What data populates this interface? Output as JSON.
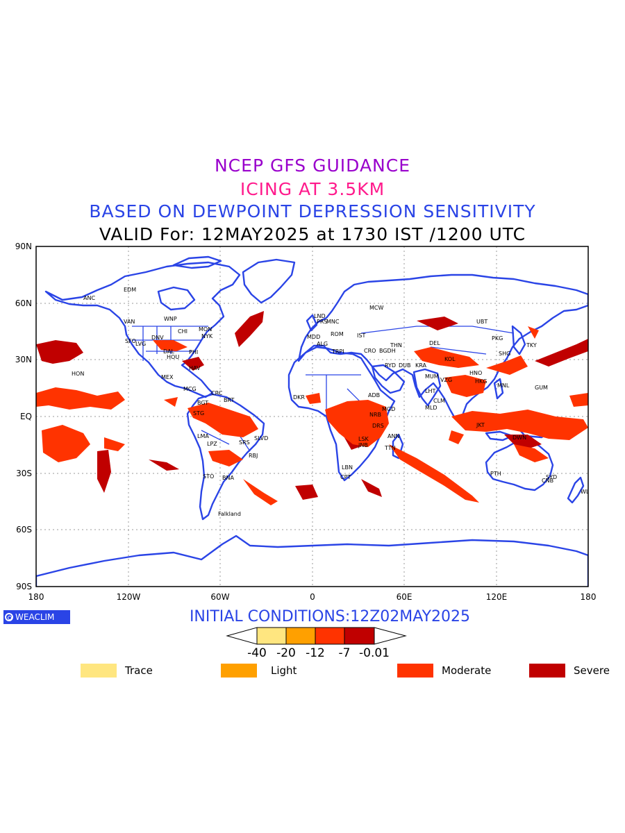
{
  "titles": {
    "line1": "NCEP GFS GUIDANCE",
    "line2": "ICING AT 3.5KM",
    "line3": "BASED ON DEWPOINT DEPRESSION SENSITIVITY",
    "line4": "VALID For: 12MAY2025 at 1730 IST /1200 UTC"
  },
  "map": {
    "lat_labels": [
      "90N",
      "60N",
      "30N",
      "EQ",
      "30S",
      "60S",
      "90S"
    ],
    "lon_labels": [
      "180",
      "120W",
      "60W",
      "0",
      "60E",
      "120E",
      "180"
    ],
    "colors": {
      "coast": "#2a44e6",
      "trace": "#ffe680",
      "light": "#ffa000",
      "moderate": "#ff3300",
      "severe": "#c00000"
    },
    "cities": [
      [
        "ANC",
        120,
        432
      ],
      [
        "HON",
        103,
        541
      ],
      [
        "VAN",
        178,
        466
      ],
      [
        "EDM",
        178,
        420
      ],
      [
        "WNP",
        236,
        462
      ],
      [
        "MON",
        286,
        477
      ],
      [
        "SFO",
        180,
        494
      ],
      [
        "LVG",
        195,
        498
      ],
      [
        "DNV",
        218,
        489
      ],
      [
        "NYK",
        290,
        487
      ],
      [
        "CHI",
        256,
        480
      ],
      [
        "DAL",
        235,
        509
      ],
      [
        "HOU",
        240,
        517
      ],
      [
        "PHI",
        272,
        510
      ],
      [
        "MEX",
        232,
        546
      ],
      [
        "HAV",
        272,
        533
      ],
      [
        "MCG",
        264,
        563
      ],
      [
        "CRC",
        304,
        569
      ],
      [
        "BRT",
        322,
        579
      ],
      [
        "BGT",
        284,
        583
      ],
      [
        "STG",
        278,
        598
      ],
      [
        "LMA",
        284,
        631
      ],
      [
        "LPZ",
        298,
        642
      ],
      [
        "SRS",
        344,
        640
      ],
      [
        "SLVD",
        366,
        634
      ],
      [
        "RBJ",
        358,
        659
      ],
      [
        "STO",
        292,
        689
      ],
      [
        "BNA",
        320,
        691
      ],
      [
        "Falkland",
        314,
        743
      ],
      [
        "LND",
        452,
        458
      ],
      [
        "PRS",
        456,
        466
      ],
      [
        "MNC",
        470,
        466
      ],
      [
        "MDD",
        442,
        488
      ],
      [
        "ALG",
        456,
        498
      ],
      [
        "TRPI",
        478,
        509
      ],
      [
        "ROM",
        476,
        484
      ],
      [
        "IST",
        514,
        486
      ],
      [
        "MCW",
        532,
        446
      ],
      [
        "CRO",
        524,
        508
      ],
      [
        "BGDH",
        546,
        508
      ],
      [
        "RYD",
        554,
        529
      ],
      [
        "DUB",
        574,
        529
      ],
      [
        "THN",
        562,
        500
      ],
      [
        "KRA",
        598,
        529
      ],
      [
        "DEL",
        618,
        497
      ],
      [
        "MUM",
        612,
        545
      ],
      [
        "LHT",
        612,
        566
      ],
      [
        "MLD",
        612,
        590
      ],
      [
        "CLM",
        624,
        580
      ],
      [
        "KOL",
        640,
        520
      ],
      [
        "VZG",
        634,
        550
      ],
      [
        "HNO",
        676,
        540
      ],
      [
        "HKG",
        684,
        552
      ],
      [
        "MNL",
        716,
        558
      ],
      [
        "SHG",
        718,
        512
      ],
      [
        "PKG",
        708,
        490
      ],
      [
        "UBT",
        686,
        466
      ],
      [
        "TKY",
        758,
        500
      ],
      [
        "GUM",
        770,
        561
      ],
      [
        "DKR",
        422,
        575
      ],
      [
        "ADB",
        530,
        572
      ],
      [
        "MGD",
        550,
        592
      ],
      [
        "NRB",
        532,
        600
      ],
      [
        "DRS",
        536,
        616
      ],
      [
        "ANN",
        558,
        631
      ],
      [
        "LSK",
        516,
        635
      ],
      [
        "JNB",
        516,
        644
      ],
      [
        "TTN",
        554,
        648
      ],
      [
        "LBN",
        492,
        676
      ],
      [
        "CPT",
        490,
        690
      ],
      [
        "PTH",
        706,
        685
      ],
      [
        "SYD",
        786,
        690
      ],
      [
        "CNB",
        780,
        695
      ],
      [
        "WLT",
        836,
        711
      ],
      [
        "DWN",
        738,
        633
      ],
      [
        "JKT",
        686,
        615
      ]
    ]
  },
  "branding": {
    "badge": "WEACLIM"
  },
  "footer": {
    "initial_conditions": "INITIAL CONDITIONS:12Z02MAY2025"
  },
  "colorbar": {
    "ticks": [
      "-40",
      "-20",
      "-12",
      "-7",
      "-0.01"
    ]
  },
  "legend": [
    {
      "label": "Trace",
      "color": "#ffe680"
    },
    {
      "label": "Light",
      "color": "#ffa000"
    },
    {
      "label": "Moderate",
      "color": "#ff3300"
    },
    {
      "label": "Severe",
      "color": "#c00000"
    }
  ]
}
